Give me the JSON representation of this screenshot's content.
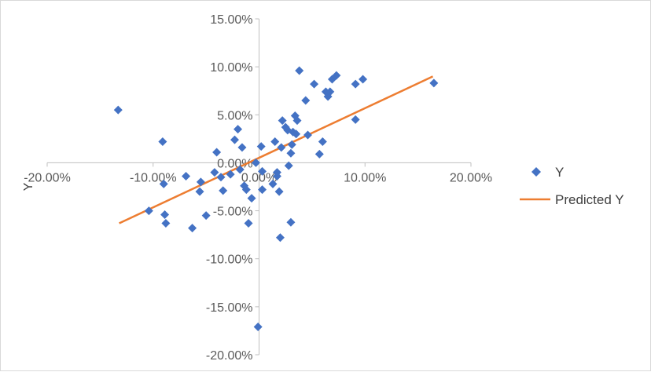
{
  "chart_data": {
    "type": "scatter",
    "title": "",
    "xlabel": "",
    "ylabel": "Y",
    "xlim": [
      -0.2,
      0.2
    ],
    "ylim": [
      -0.2,
      0.15
    ],
    "x_ticks": [
      {
        "value": -0.2,
        "label": "-20.00%"
      },
      {
        "value": -0.1,
        "label": "-10.00%"
      },
      {
        "value": 0.0,
        "label": "0.00%"
      },
      {
        "value": 0.1,
        "label": "10.00%"
      },
      {
        "value": 0.2,
        "label": "20.00%"
      }
    ],
    "y_ticks": [
      {
        "value": 0.15,
        "label": "15.00%"
      },
      {
        "value": 0.1,
        "label": "10.00%"
      },
      {
        "value": 0.05,
        "label": "5.00%"
      },
      {
        "value": 0.0,
        "label": "0.00%"
      },
      {
        "value": -0.05,
        "label": "-5.00%"
      },
      {
        "value": -0.1,
        "label": "-10.00%"
      },
      {
        "value": -0.15,
        "label": "-15.00%"
      },
      {
        "value": -0.2,
        "label": "-20.00%"
      }
    ],
    "grid": false,
    "legend_position": "right",
    "series": [
      {
        "name": "Y",
        "type": "scatter",
        "marker": "diamond",
        "color": "#4472C4",
        "points": [
          [
            -0.133,
            0.055
          ],
          [
            -0.104,
            -0.05
          ],
          [
            -0.091,
            0.022
          ],
          [
            -0.09,
            -0.022
          ],
          [
            -0.089,
            -0.054
          ],
          [
            -0.088,
            -0.063
          ],
          [
            -0.069,
            -0.014
          ],
          [
            -0.063,
            -0.068
          ],
          [
            -0.056,
            -0.03
          ],
          [
            -0.055,
            -0.02
          ],
          [
            -0.05,
            -0.055
          ],
          [
            -0.042,
            -0.01
          ],
          [
            -0.04,
            0.011
          ],
          [
            -0.036,
            -0.015
          ],
          [
            -0.034,
            -0.029
          ],
          [
            -0.027,
            -0.012
          ],
          [
            -0.023,
            0.024
          ],
          [
            -0.02,
            0.035
          ],
          [
            -0.018,
            -0.007
          ],
          [
            -0.016,
            0.016
          ],
          [
            -0.014,
            -0.024
          ],
          [
            -0.012,
            -0.028
          ],
          [
            -0.01,
            -0.063
          ],
          [
            -0.007,
            -0.037
          ],
          [
            -0.003,
            0.0
          ],
          [
            -0.001,
            -0.171
          ],
          [
            0.002,
            0.017
          ],
          [
            0.003,
            -0.009
          ],
          [
            0.003,
            -0.028
          ],
          [
            0.013,
            -0.022
          ],
          [
            0.015,
            0.022
          ],
          [
            0.017,
            -0.01
          ],
          [
            0.017,
            -0.014
          ],
          [
            0.019,
            -0.03
          ],
          [
            0.02,
            -0.078
          ],
          [
            0.021,
            0.016
          ],
          [
            0.022,
            0.044
          ],
          [
            0.025,
            0.037
          ],
          [
            0.027,
            0.034
          ],
          [
            0.028,
            -0.003
          ],
          [
            0.03,
            0.01
          ],
          [
            0.03,
            -0.062
          ],
          [
            0.031,
            0.019
          ],
          [
            0.032,
            0.032
          ],
          [
            0.034,
            0.049
          ],
          [
            0.035,
            0.03
          ],
          [
            0.036,
            0.044
          ],
          [
            0.038,
            0.096
          ],
          [
            0.044,
            0.065
          ],
          [
            0.046,
            0.029
          ],
          [
            0.052,
            0.082
          ],
          [
            0.057,
            0.009
          ],
          [
            0.06,
            0.022
          ],
          [
            0.063,
            0.074
          ],
          [
            0.065,
            0.069
          ],
          [
            0.067,
            0.074
          ],
          [
            0.069,
            0.087
          ],
          [
            0.073,
            0.091
          ],
          [
            0.091,
            0.045
          ],
          [
            0.091,
            0.082
          ],
          [
            0.098,
            0.087
          ],
          [
            0.165,
            0.083
          ]
        ]
      },
      {
        "name": "Predicted Y",
        "type": "line",
        "color": "#ED7D31",
        "points": [
          [
            -0.132,
            -0.063
          ],
          [
            0.164,
            0.09
          ]
        ]
      }
    ]
  }
}
